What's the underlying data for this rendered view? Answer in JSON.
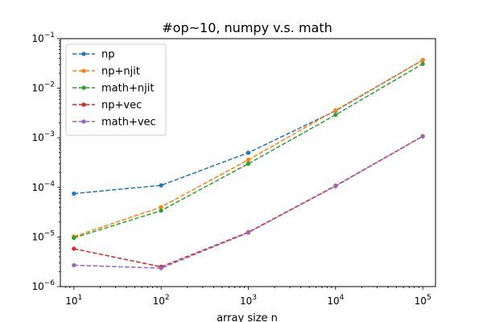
{
  "chart_data": {
    "type": "line",
    "title": "#op~10, numpy v.s. math",
    "xlabel": "array size n",
    "ylabel": "",
    "xscale": "log",
    "yscale": "log",
    "xlim": [
      7,
      140000
    ],
    "ylim": [
      1e-06,
      0.1
    ],
    "x": [
      10,
      100,
      1000,
      10000,
      100000
    ],
    "x_tick_labels": [
      {
        "value": 10,
        "base": "10",
        "exp": "1"
      },
      {
        "value": 100,
        "base": "10",
        "exp": "2"
      },
      {
        "value": 1000,
        "base": "10",
        "exp": "3"
      },
      {
        "value": 10000,
        "base": "10",
        "exp": "4"
      },
      {
        "value": 100000,
        "base": "10",
        "exp": "5"
      }
    ],
    "y_tick_labels": [
      {
        "value": 1e-06,
        "base": "10",
        "exp": "−6"
      },
      {
        "value": 1e-05,
        "base": "10",
        "exp": "−5"
      },
      {
        "value": 0.0001,
        "base": "10",
        "exp": "−4"
      },
      {
        "value": 0.001,
        "base": "10",
        "exp": "−3"
      },
      {
        "value": 0.01,
        "base": "10",
        "exp": "−2"
      },
      {
        "value": 0.1,
        "base": "10",
        "exp": "−1"
      }
    ],
    "grid": false,
    "legend_position": "top-left",
    "series": [
      {
        "name": "np",
        "color": "#1f77b4",
        "values": [
          7.5e-05,
          0.00011,
          0.0005,
          0.0035,
          0.037
        ]
      },
      {
        "name": "np+njit",
        "color": "#ff7f0e",
        "values": [
          1.02e-05,
          4e-05,
          0.00036,
          0.0036,
          0.037
        ]
      },
      {
        "name": "math+njit",
        "color": "#2ca02c",
        "values": [
          9.6e-06,
          3.4e-05,
          0.0003,
          0.0029,
          0.031
        ]
      },
      {
        "name": "np+vec",
        "color": "#d62728",
        "values": [
          5.8e-06,
          2.5e-06,
          1.25e-05,
          0.000108,
          0.00108
        ]
      },
      {
        "name": "math+vec",
        "color": "#9467bd",
        "values": [
          2.7e-06,
          2.35e-06,
          1.22e-05,
          0.000106,
          0.00107
        ]
      }
    ]
  }
}
